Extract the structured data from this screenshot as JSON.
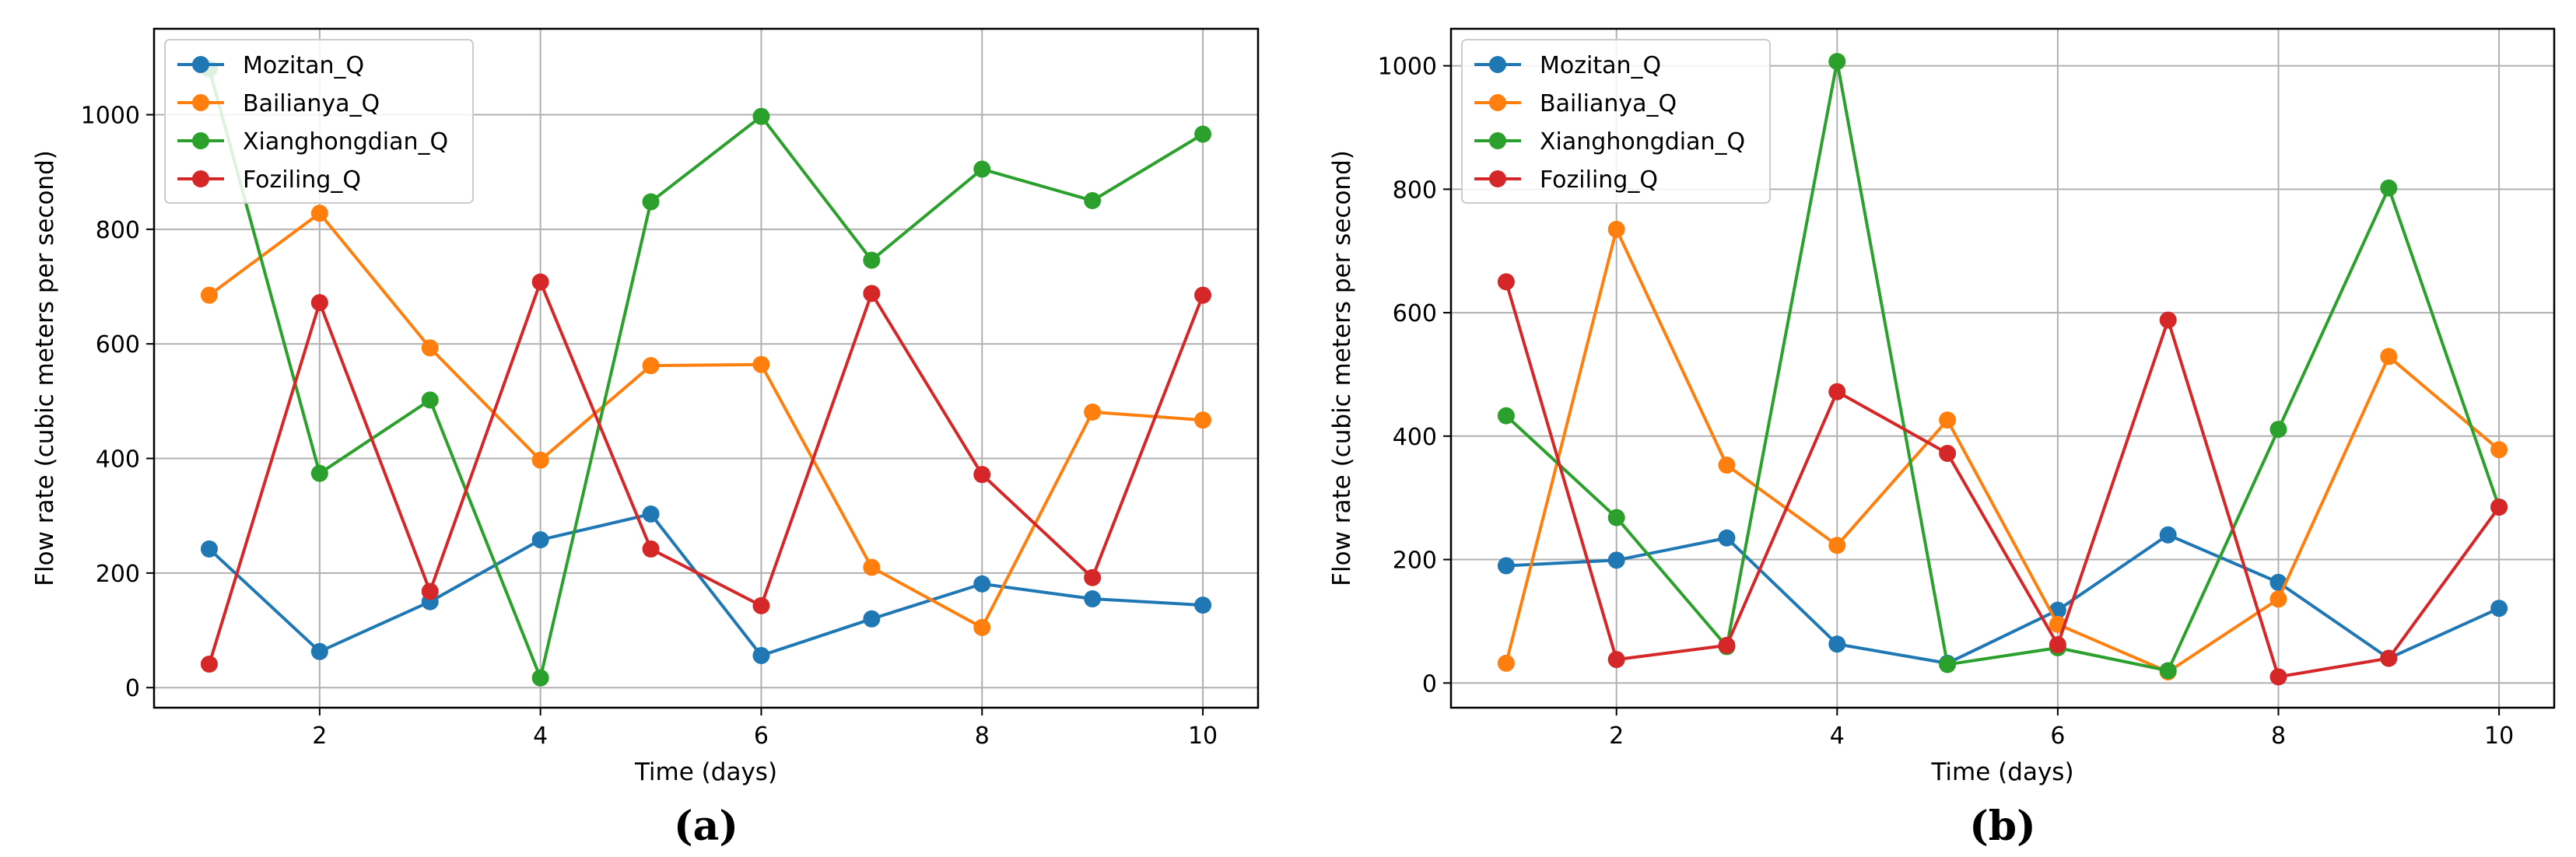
{
  "chart_data": [
    {
      "type": "line",
      "panel_label": "(a)",
      "xlabel": "Time (days)",
      "ylabel": "Flow rate (cubic meters per second)",
      "xlim": [
        0.5,
        10.5
      ],
      "ylim": [
        -35,
        1150
      ],
      "xticks": [
        2,
        4,
        6,
        8,
        10
      ],
      "yticks": [
        0,
        200,
        400,
        600,
        800,
        1000
      ],
      "grid": true,
      "legend_position": "top-left",
      "x": [
        1,
        2,
        3,
        4,
        5,
        6,
        7,
        8,
        9,
        10
      ],
      "series": [
        {
          "name": "Mozitan_Q",
          "color": "#1f77b4",
          "values": [
            242,
            63,
            150,
            258,
            303,
            56,
            120,
            181,
            155,
            144
          ]
        },
        {
          "name": "Bailianya_Q",
          "color": "#ff7f0e",
          "values": [
            685,
            828,
            593,
            397,
            562,
            564,
            210,
            105,
            481,
            467
          ]
        },
        {
          "name": "Xianghongdian_Q",
          "color": "#2ca02c",
          "values": [
            1080,
            374,
            502,
            17,
            848,
            997,
            746,
            905,
            850,
            966
          ]
        },
        {
          "name": "Foziling_Q",
          "color": "#d62728",
          "values": [
            41,
            672,
            168,
            708,
            242,
            143,
            688,
            372,
            192,
            685
          ]
        }
      ]
    },
    {
      "type": "line",
      "panel_label": "(b)",
      "xlabel": "Time (days)",
      "ylabel": "Flow rate (cubic meters per second)",
      "xlim": [
        0.5,
        10.5
      ],
      "ylim": [
        -40,
        1060
      ],
      "xticks": [
        2,
        4,
        6,
        8,
        10
      ],
      "yticks": [
        0,
        200,
        400,
        600,
        800,
        1000
      ],
      "grid": true,
      "legend_position": "top-left",
      "x": [
        1,
        2,
        3,
        4,
        5,
        6,
        7,
        8,
        9,
        10
      ],
      "series": [
        {
          "name": "Mozitan_Q",
          "color": "#1f77b4",
          "values": [
            190,
            199,
            235,
            63,
            32,
            118,
            240,
            163,
            40,
            121
          ]
        },
        {
          "name": "Bailianya_Q",
          "color": "#ff7f0e",
          "values": [
            32,
            735,
            353,
            223,
            426,
            95,
            18,
            136,
            529,
            378
          ]
        },
        {
          "name": "Xianghongdian_Q",
          "color": "#2ca02c",
          "values": [
            433,
            268,
            59,
            1007,
            30,
            57,
            20,
            411,
            802,
            285
          ]
        },
        {
          "name": "Foziling_Q",
          "color": "#d62728",
          "values": [
            650,
            38,
            61,
            472,
            372,
            62,
            588,
            10,
            40,
            285
          ]
        }
      ]
    }
  ]
}
